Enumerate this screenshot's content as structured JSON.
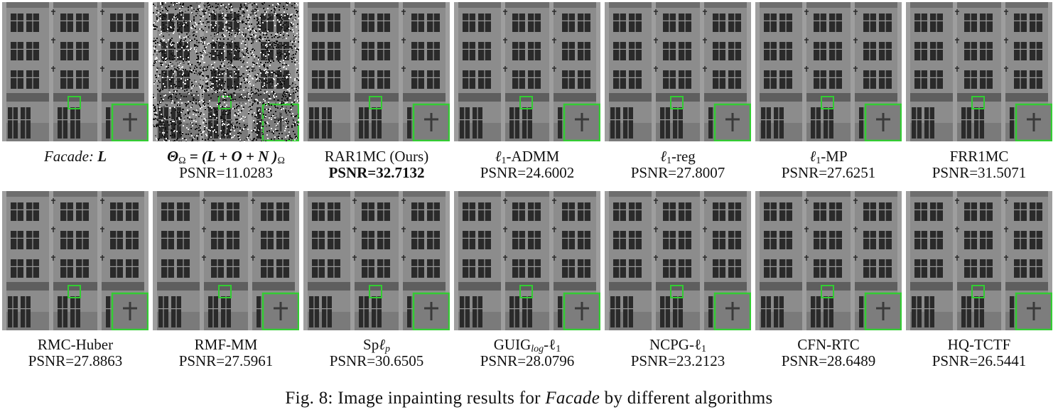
{
  "figure": {
    "caption_prefix": "Fig. 8: Image inpainting results for ",
    "caption_italic": "Facade",
    "caption_suffix": " by different algorithms"
  },
  "panels": [
    {
      "id": "facade-l",
      "label_italic": "Facade:",
      "label_math": "L",
      "psnr": ""
    },
    {
      "id": "observed",
      "label_math": "Θ",
      "label_sub": "Ω",
      "label_rest": " = (L + O + N )",
      "label_sub2": "Ω",
      "psnr": "PSNR=11.0283"
    },
    {
      "id": "rar1mc",
      "label": "RAR1MC (Ours)",
      "psnr": "PSNR=32.7132"
    },
    {
      "id": "l1-admm",
      "label_pre": "ℓ",
      "label_sub": "1",
      "label": "-ADMM",
      "psnr": "PSNR=24.6002"
    },
    {
      "id": "l1-reg",
      "label_pre": "ℓ",
      "label_sub": "1",
      "label": "-reg",
      "psnr": "PSNR=27.8007"
    },
    {
      "id": "l1-mp",
      "label_pre": "ℓ",
      "label_sub": "1",
      "label": "-MP",
      "psnr": "PSNR=27.6251"
    },
    {
      "id": "frr1mc",
      "label": "FRR1MC",
      "psnr": "PSNR=31.5071"
    },
    {
      "id": "rmc-huber",
      "label": "RMC-Huber",
      "psnr": "PSNR=27.8863"
    },
    {
      "id": "rmf-mm",
      "label": "RMF-MM",
      "psnr": "PSNR=27.5961"
    },
    {
      "id": "sp-lp",
      "label": "Sp",
      "label_math": "ℓ",
      "label_sub": "p",
      "psnr": "PSNR=30.6505"
    },
    {
      "id": "guig",
      "label": "GUIG",
      "label_sub": "log",
      "label_post": "-ℓ",
      "label_sub2": "1",
      "psnr": "PSNR=28.0796"
    },
    {
      "id": "ncpg",
      "label": "NCPG-ℓ",
      "label_sub": "1",
      "psnr": "PSNR=23.2123"
    },
    {
      "id": "cfn-rtc",
      "label": "CFN-RTC",
      "psnr": "PSNR=28.6489"
    },
    {
      "id": "hq-tctf",
      "label": "HQ-TCTF",
      "psnr": "PSNR=26.5441"
    }
  ],
  "colors": {
    "highlight_box": "#33cc33",
    "wall": "#8c8c8c",
    "window": "#2a2a2a"
  }
}
